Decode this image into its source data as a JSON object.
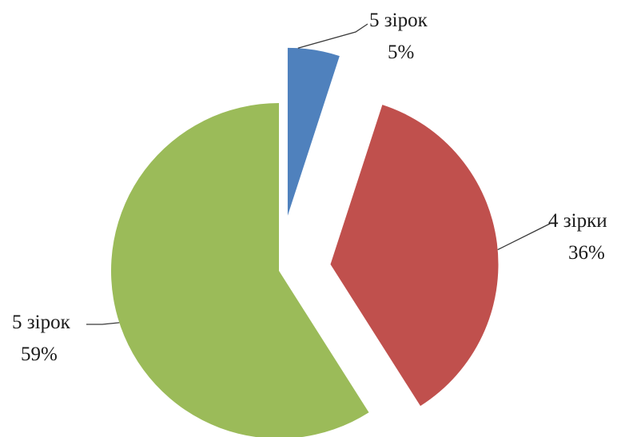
{
  "chart_data": {
    "type": "pie",
    "title": "",
    "legend": "none",
    "exploded": true,
    "slices": [
      {
        "label": "5 зірок",
        "value": 5,
        "value_label": "5%",
        "color": "#4f81bd"
      },
      {
        "label": "4 зірки",
        "value": 36,
        "value_label": "36%",
        "color": "#c0504d"
      },
      {
        "label": "5 зірок",
        "value": 59,
        "value_label": "59%",
        "color": "#9bbb59"
      }
    ]
  }
}
